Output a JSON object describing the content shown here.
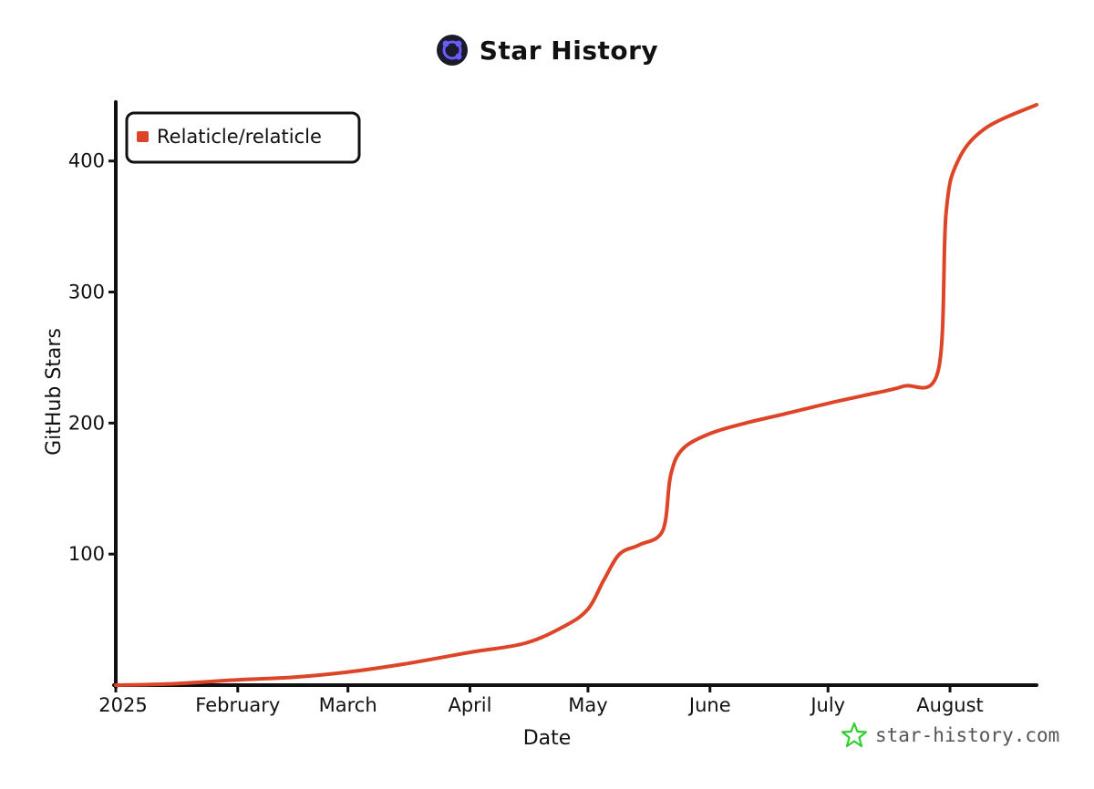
{
  "header": {
    "title": "Star History",
    "logo_icon": "star-history-logo-icon"
  },
  "watermark": {
    "text": "star-history.com",
    "icon": "green-star-icon"
  },
  "colors": {
    "series": "#dd4528",
    "axis": "#111111",
    "logo_bg": "#1b1b2b",
    "logo_accent": "#6a5cff",
    "watermark_star": "#2fcf2f"
  },
  "chart_data": {
    "type": "line",
    "title": "Star History",
    "xlabel": "Date",
    "ylabel": "GitHub Stars",
    "x_ticks": [
      {
        "label": "2025",
        "date": "2025-01-01"
      },
      {
        "label": "February",
        "date": "2025-02-01"
      },
      {
        "label": "March",
        "date": "2025-03-01"
      },
      {
        "label": "April",
        "date": "2025-04-01"
      },
      {
        "label": "May",
        "date": "2025-05-01"
      },
      {
        "label": "June",
        "date": "2025-06-01"
      },
      {
        "label": "July",
        "date": "2025-07-01"
      },
      {
        "label": "August",
        "date": "2025-08-01"
      }
    ],
    "y_ticks": [
      100,
      200,
      300,
      400
    ],
    "xlim": [
      "2025-01-01",
      "2025-08-23"
    ],
    "ylim": [
      0,
      445
    ],
    "grid": false,
    "legend": "top-left",
    "series": [
      {
        "name": "Relaticle/relaticle",
        "points": [
          [
            "2025-01-01",
            0
          ],
          [
            "2025-01-15",
            1
          ],
          [
            "2025-02-01",
            4
          ],
          [
            "2025-02-15",
            6
          ],
          [
            "2025-03-01",
            10
          ],
          [
            "2025-03-15",
            16
          ],
          [
            "2025-04-01",
            25
          ],
          [
            "2025-04-15",
            32
          ],
          [
            "2025-04-25",
            45
          ],
          [
            "2025-05-01",
            58
          ],
          [
            "2025-05-05",
            80
          ],
          [
            "2025-05-09",
            100
          ],
          [
            "2025-05-14",
            107
          ],
          [
            "2025-05-20",
            118
          ],
          [
            "2025-05-22",
            160
          ],
          [
            "2025-05-25",
            180
          ],
          [
            "2025-06-01",
            192
          ],
          [
            "2025-06-10",
            200
          ],
          [
            "2025-06-20",
            207
          ],
          [
            "2025-07-01",
            215
          ],
          [
            "2025-07-10",
            221
          ],
          [
            "2025-07-20",
            228
          ],
          [
            "2025-07-29",
            240
          ],
          [
            "2025-07-31",
            360
          ],
          [
            "2025-08-03",
            400
          ],
          [
            "2025-08-10",
            425
          ],
          [
            "2025-08-23",
            443
          ]
        ]
      }
    ]
  }
}
